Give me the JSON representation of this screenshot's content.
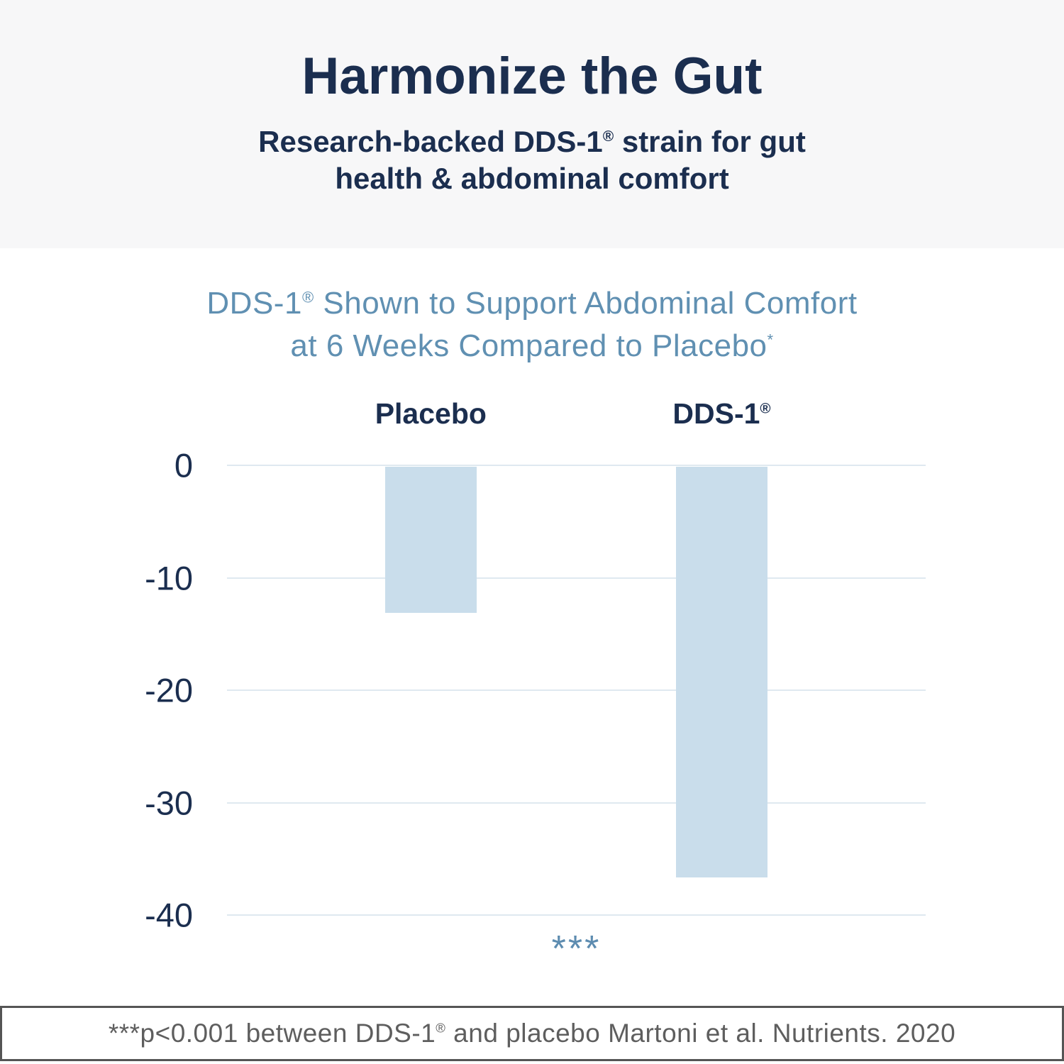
{
  "page": {
    "header": {
      "title": "Harmonize the Gut",
      "subtitle_lines": [
        "Research-backed DDS-1® strain for gut",
        "health & abdominal comfort"
      ]
    },
    "footnote": "***p<0.001 between DDS-1® and placebo Martoni et al. Nutrients. 2020"
  },
  "chart_data": {
    "type": "bar",
    "title_lines": [
      "DDS-1® Shown to Support Abdominal Comfort",
      "at 6 Weeks Compared to Placebo*"
    ],
    "categories": [
      "Placebo",
      "DDS-1®"
    ],
    "values": [
      -13,
      -36.5
    ],
    "yticks": [
      0,
      -10,
      -20,
      -30,
      -40
    ],
    "ylim": [
      0,
      -40
    ],
    "xlabel": "",
    "ylabel": "",
    "grid": true,
    "legend": "none",
    "significance_annotation": "***",
    "bar_color": "#c9ddeb",
    "grid_color": "#dfe9f0"
  },
  "colors": {
    "header_bg": "#f7f7f8",
    "navy": "#1b2e4f",
    "steel_blue": "#6090b2",
    "annotation_blue": "#5d8cb0",
    "bar_fill": "#c9ddeb",
    "gridline": "#dfe9f0",
    "footnote_text": "#5e5e5e",
    "footnote_border": "#555555"
  }
}
